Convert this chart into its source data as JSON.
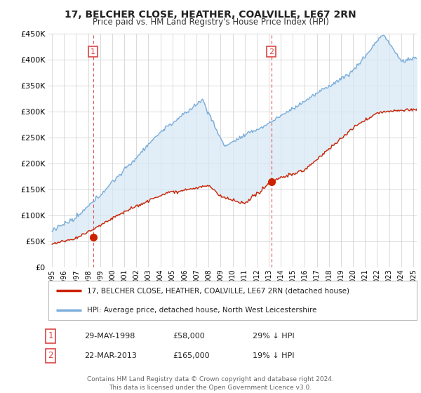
{
  "title": "17, BELCHER CLOSE, HEATHER, COALVILLE, LE67 2RN",
  "subtitle": "Price paid vs. HM Land Registry's House Price Index (HPI)",
  "legend_line1": "17, BELCHER CLOSE, HEATHER, COALVILLE, LE67 2RN (detached house)",
  "legend_line2": "HPI: Average price, detached house, North West Leicestershire",
  "transaction1_label": "1",
  "transaction1_date": "29-MAY-1998",
  "transaction1_price": "£58,000",
  "transaction1_hpi": "29% ↓ HPI",
  "transaction1_year": 1998.41,
  "transaction1_value": 58000,
  "transaction2_label": "2",
  "transaction2_date": "22-MAR-2013",
  "transaction2_price": "£165,000",
  "transaction2_hpi": "19% ↓ HPI",
  "transaction2_year": 2013.22,
  "transaction2_value": 165000,
  "footer": "Contains HM Land Registry data © Crown copyright and database right 2024.\nThis data is licensed under the Open Government Licence v3.0.",
  "hpi_color": "#7aadda",
  "hpi_fill_color": "#d6e8f5",
  "price_color": "#cc2200",
  "vline_color": "#dd4444",
  "ylim": [
    0,
    450000
  ],
  "xlim_start": 1995,
  "xlim_end": 2025.3,
  "background_color": "#ffffff",
  "grid_color": "#cccccc"
}
